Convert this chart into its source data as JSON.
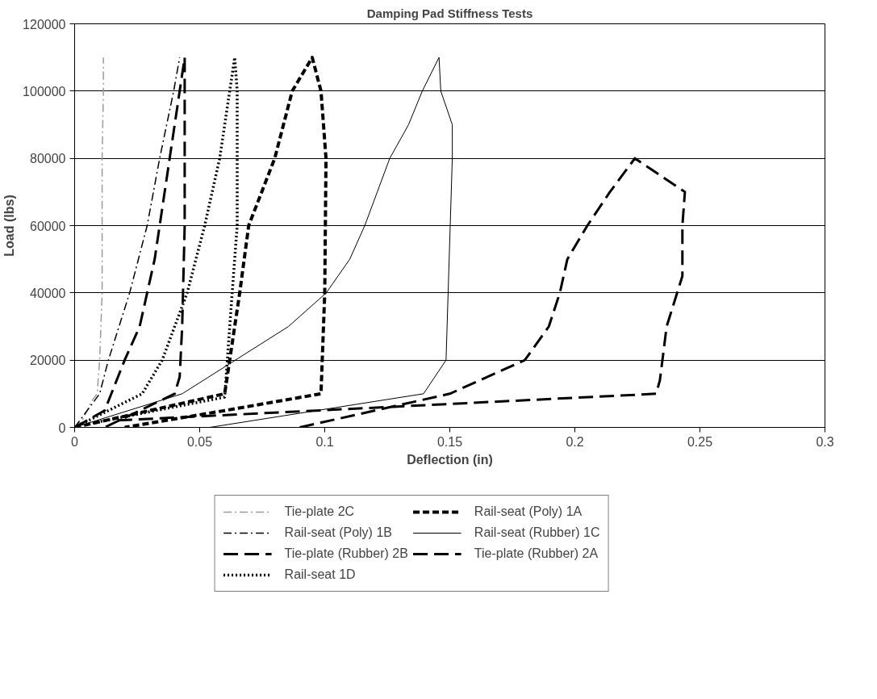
{
  "chart_data": {
    "type": "line",
    "title": "Damping Pad Stiffness Tests",
    "xlabel": "Deflection (in)",
    "ylabel": "Load (lbs)",
    "xlim": [
      0,
      0.3
    ],
    "xticks": [
      0,
      0.05,
      0.1,
      0.15,
      0.2,
      0.25,
      0.3
    ],
    "ylim": [
      0,
      120000
    ],
    "yticks": [
      0,
      20000,
      40000,
      60000,
      80000,
      100000,
      120000
    ],
    "grid": "y",
    "legend": "bottom",
    "series": [
      {
        "name": "Tie-plate 2C",
        "color": "#9a9a9a",
        "line_style": "dashdot",
        "x": [
          0,
          0.003,
          0.007,
          0.009,
          0.01,
          0.011,
          0.011,
          0.011,
          0.0115,
          0.0115
        ],
        "values": [
          0,
          2000,
          8000,
          10000,
          20000,
          40000,
          60000,
          80000,
          100000,
          110000
        ]
      },
      {
        "name": "Rail-seat (Poly) 1B",
        "color": "#000000",
        "line_style": "dashdot",
        "x": [
          0,
          0.01,
          0.0135,
          0.022,
          0.029,
          0.034,
          0.0396,
          0.042
        ],
        "values": [
          0,
          10000,
          20000,
          40000,
          60000,
          80000,
          100000,
          110000
        ]
      },
      {
        "name": "Tie-plate (Rubber) 2B",
        "color": "#000000",
        "line_style": "longdash",
        "x": [
          0,
          0.012,
          0.02,
          0.026,
          0.032,
          0.036,
          0.04,
          0.044,
          0.044,
          0.044,
          0.043,
          0.042,
          0.04,
          0.012
        ],
        "values": [
          0,
          5000,
          20000,
          30000,
          50000,
          70000,
          90000,
          110000,
          100000,
          60000,
          30000,
          15000,
          10000,
          0
        ]
      },
      {
        "name": "Rail-seat 1D",
        "color": "#000000",
        "line_style": "dotted",
        "x": [
          0,
          0.027,
          0.035,
          0.045,
          0.052,
          0.058,
          0.062,
          0.064,
          0.065,
          0.065,
          0.062,
          0.06,
          0.005
        ],
        "values": [
          0,
          10000,
          20000,
          40000,
          60000,
          80000,
          100000,
          110000,
          100000,
          60000,
          30000,
          9000,
          1000
        ]
      },
      {
        "name": "Rail-seat (Poly) 1A",
        "color": "#000000",
        "line_style": "dashed",
        "x": [
          0,
          0.06,
          0.062,
          0.066,
          0.0696,
          0.08,
          0.087,
          0.095,
          0.0985,
          0.1005,
          0.1,
          0.0985,
          0.06,
          0.02
        ],
        "values": [
          0,
          10000,
          20000,
          40000,
          60000,
          80000,
          100000,
          110000,
          100000,
          80000,
          40000,
          10000,
          5000,
          0
        ]
      },
      {
        "name": "Rail-seat (Rubber) 1C",
        "color": "#000000",
        "line_style": "solid",
        "x": [
          0,
          0.043,
          0.0855,
          0.1006,
          0.11,
          0.116,
          0.121,
          0.126,
          0.1335,
          0.139,
          0.1457,
          0.1464,
          0.151,
          0.151,
          0.1485,
          0.1395,
          0.054
        ],
        "values": [
          0,
          10000,
          30000,
          40000,
          50000,
          60000,
          70000,
          80000,
          90000,
          100000,
          110000,
          100000,
          90000,
          80000,
          20000,
          10000,
          0
        ]
      },
      {
        "name": "Tie-plate (Rubber) 2A",
        "color": "#000000",
        "line_style": "longdash",
        "x": [
          0.09,
          0.15,
          0.18,
          0.1896,
          0.194,
          0.197,
          0.205,
          0.214,
          0.224,
          0.244,
          0.243,
          0.243,
          0.2367,
          0.234,
          0.2325,
          0.015
        ],
        "values": [
          0,
          10000,
          20000,
          30000,
          40000,
          50000,
          60000,
          70000,
          80000,
          70000,
          60000,
          45000,
          30000,
          14000,
          10000,
          2000
        ]
      }
    ]
  }
}
